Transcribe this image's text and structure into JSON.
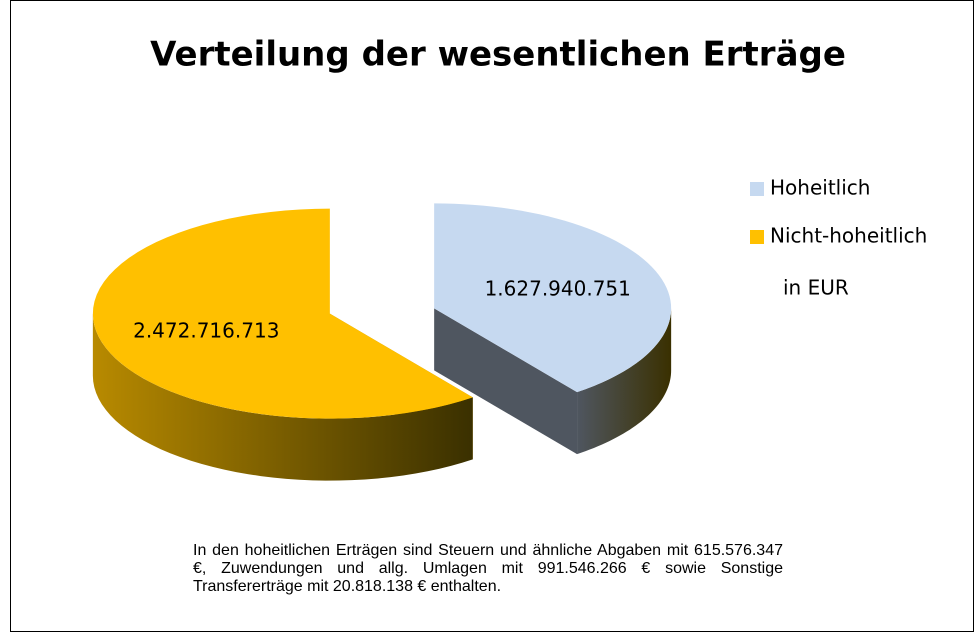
{
  "chart_data": {
    "type": "pie",
    "title": "Verteilung der wesentlichen Erträge",
    "categories": [
      "Hoheitlich",
      "Nicht-hoheitlich"
    ],
    "values": [
      1627940751,
      2472716713
    ],
    "value_labels": [
      "1.627.940.751",
      "2.472.716.713"
    ],
    "colors": [
      "#c6d9f0",
      "#ffc000"
    ],
    "side_colors": [
      "#4f5660",
      "#b88a00"
    ],
    "legend": "right",
    "unit_label": "in EUR",
    "caption": "In den hoheitlichen Erträgen sind Steuern und ähnliche Abgaben mit 615.576.347 €, Zuwendungen und allg. Umlagen mit 991.546.266 € sowie Sonstige Transfererträge mit 20.818.138 € enthalten."
  }
}
